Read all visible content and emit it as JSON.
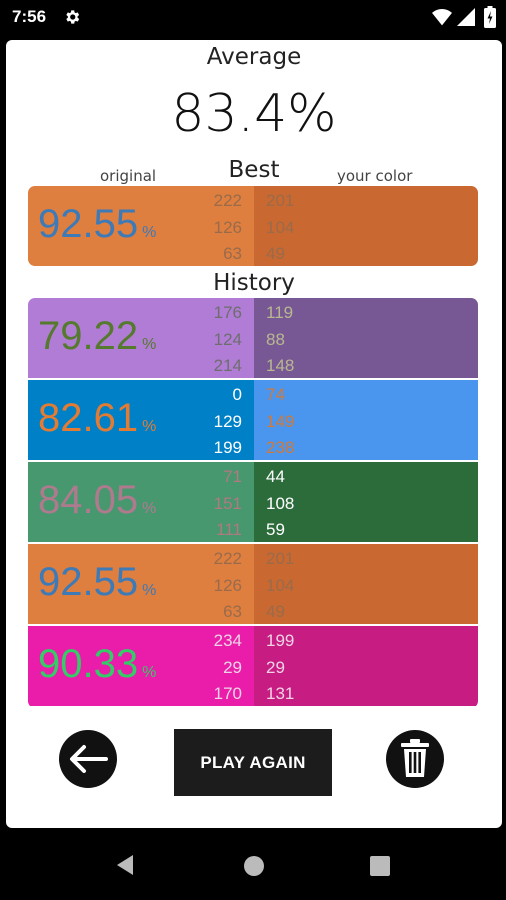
{
  "status_bar": {
    "time": "7:56",
    "icons": [
      "gear-icon",
      "wifi-icon",
      "signal-icon",
      "battery-icon"
    ]
  },
  "average": {
    "title": "Average",
    "value": "83.4%"
  },
  "labels": {
    "original": "original",
    "best": "Best",
    "your_color": "your color",
    "history": "History",
    "percent_sign": "%"
  },
  "best": {
    "percent": "92.55",
    "original_rgb": [
      "222",
      "126",
      "63"
    ],
    "your_rgb": [
      "201",
      "104",
      "49"
    ],
    "original_color": "#de7e3f",
    "your_color": "#c96831",
    "percent_color": "#3d7ab8",
    "orig_text_color": "#9a6b4a",
    "your_text_color": "#9a6b4a"
  },
  "history": [
    {
      "percent": "79.22",
      "original_rgb": [
        "176",
        "124",
        "214"
      ],
      "your_rgb": [
        "119",
        "88",
        "148"
      ],
      "original_color": "#b07cd6",
      "your_color": "#775894",
      "percent_color": "#557a2e",
      "orig_text_color": "#6e6e6e",
      "your_text_color": "#b8b890"
    },
    {
      "percent": "82.61",
      "original_rgb": [
        "0",
        "129",
        "199"
      ],
      "your_rgb": [
        "74",
        "149",
        "238"
      ],
      "original_color": "#0081c7",
      "your_color": "#4a95ee",
      "percent_color": "#e37c32",
      "orig_text_color": "#ffffff",
      "your_text_color": "#d07a3a"
    },
    {
      "percent": "84.05",
      "original_rgb": [
        "71",
        "151",
        "111"
      ],
      "your_rgb": [
        "44",
        "108",
        "59"
      ],
      "original_color": "#47976f",
      "your_color": "#2c6c3b",
      "percent_color": "#b07a8e",
      "orig_text_color": "#b07a80",
      "your_text_color": "#ffffff"
    },
    {
      "percent": "92.55",
      "original_rgb": [
        "222",
        "126",
        "63"
      ],
      "your_rgb": [
        "201",
        "104",
        "49"
      ],
      "original_color": "#de7e3f",
      "your_color": "#c96831",
      "percent_color": "#3d7ab8",
      "orig_text_color": "#9a6b4a",
      "your_text_color": "#9a6b4a"
    },
    {
      "percent": "90.33",
      "original_rgb": [
        "234",
        "29",
        "170"
      ],
      "your_rgb": [
        "199",
        "29",
        "131"
      ],
      "original_color": "#ea1daa",
      "your_color": "#c71d83",
      "percent_color": "#33cc66",
      "orig_text_color": "#efd3e5",
      "your_text_color": "#efd3e5"
    }
  ],
  "buttons": {
    "back_icon": "arrow-left-icon",
    "play_again": "PLAY AGAIN",
    "delete_icon": "trash-icon"
  },
  "nav": {
    "icons": [
      "nav-back-icon",
      "nav-home-icon",
      "nav-recent-icon"
    ]
  }
}
